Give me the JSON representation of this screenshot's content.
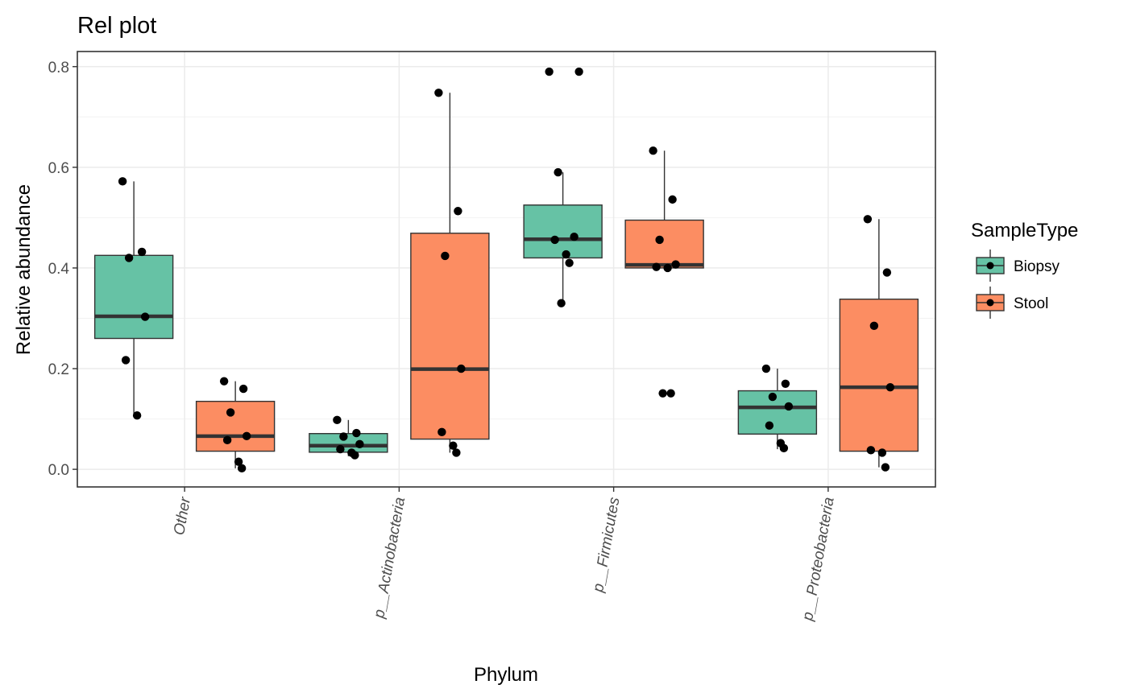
{
  "chart_data": {
    "type": "box",
    "title": "Rel plot",
    "xlabel": "Phylum",
    "ylabel": "Relative abundance",
    "ylim": [
      -0.035,
      0.83
    ],
    "y_ticks": [
      "0.0",
      "0.2",
      "0.4",
      "0.6",
      "0.8"
    ],
    "y_tick_values": [
      0.0,
      0.2,
      0.4,
      0.6,
      0.8
    ],
    "grid": true,
    "categories": [
      "Other",
      "p__Actinobacteria",
      "p__Firmicutes",
      "p__Proteobacteria"
    ],
    "legend": {
      "title": "SampleType",
      "position": "right",
      "entries": [
        "Biopsy",
        "Stool"
      ]
    },
    "series": [
      {
        "name": "Biopsy",
        "color": "#66c2a5",
        "boxes": [
          {
            "category": "Other",
            "whisker_low": 0.107,
            "q1": 0.26,
            "median": 0.304,
            "q3": 0.425,
            "whisker_high": 0.572,
            "points": [
              0.572,
              0.432,
              0.42,
              0.303,
              0.217,
              0.107
            ]
          },
          {
            "category": "p__Actinobacteria",
            "whisker_low": 0.026,
            "q1": 0.034,
            "median": 0.047,
            "q3": 0.071,
            "whisker_high": 0.098,
            "points": [
              0.098,
              0.072,
              0.065,
              0.05,
              0.04,
              0.033,
              0.028
            ]
          },
          {
            "category": "p__Firmicutes",
            "whisker_low": 0.33,
            "q1": 0.42,
            "median": 0.457,
            "q3": 0.525,
            "whisker_high": 0.59,
            "points": [
              0.79,
              0.79,
              0.59,
              0.462,
              0.456,
              0.427,
              0.41,
              0.33
            ]
          },
          {
            "category": "p__Proteobacteria",
            "whisker_low": 0.04,
            "q1": 0.07,
            "median": 0.123,
            "q3": 0.156,
            "whisker_high": 0.2,
            "points": [
              0.2,
              0.17,
              0.144,
              0.125,
              0.087,
              0.052,
              0.042
            ]
          }
        ]
      },
      {
        "name": "Stool",
        "color": "#fc8d62",
        "boxes": [
          {
            "category": "Other",
            "whisker_low": 0.002,
            "q1": 0.036,
            "median": 0.066,
            "q3": 0.135,
            "whisker_high": 0.175,
            "points": [
              0.175,
              0.16,
              0.113,
              0.066,
              0.058,
              0.015,
              0.002
            ]
          },
          {
            "category": "p__Actinobacteria",
            "whisker_low": 0.033,
            "q1": 0.06,
            "median": 0.199,
            "q3": 0.469,
            "whisker_high": 0.748,
            "points": [
              0.748,
              0.513,
              0.424,
              0.2,
              0.074,
              0.047,
              0.033
            ]
          },
          {
            "category": "p__Firmicutes",
            "whisker_low": 0.4,
            "q1": 0.4,
            "median": 0.406,
            "q3": 0.495,
            "whisker_high": 0.633,
            "points": [
              0.633,
              0.536,
              0.456,
              0.407,
              0.402,
              0.4,
              0.151,
              0.151
            ]
          },
          {
            "category": "p__Proteobacteria",
            "whisker_low": 0.004,
            "q1": 0.036,
            "median": 0.163,
            "q3": 0.338,
            "whisker_high": 0.497,
            "points": [
              0.497,
              0.391,
              0.285,
              0.163,
              0.038,
              0.033,
              0.004
            ]
          }
        ]
      }
    ]
  }
}
